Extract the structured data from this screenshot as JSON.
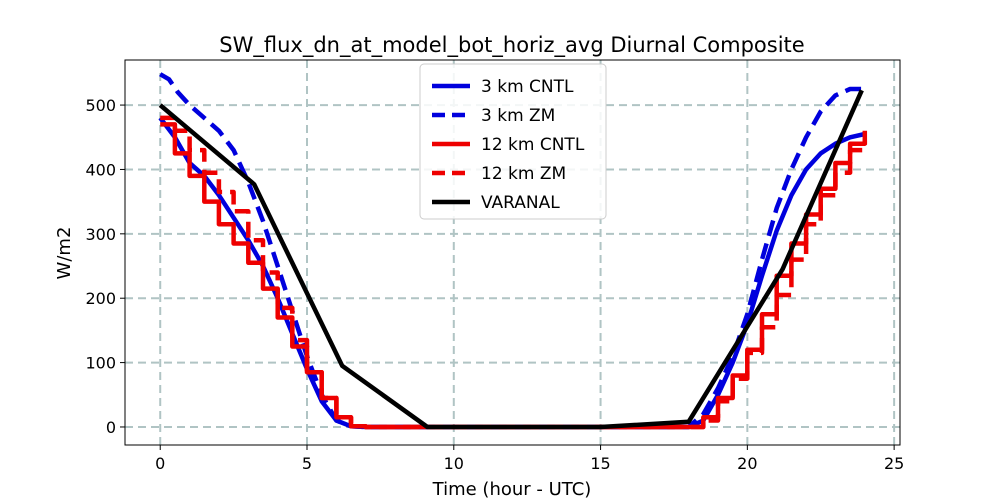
{
  "chart_data": {
    "type": "line",
    "title": "SW_flux_dn_at_model_bot_horiz_avg Diurnal Composite",
    "xlabel": "Time (hour - UTC)",
    "ylabel": "W/m2",
    "xlim": [
      -1.2,
      25.2
    ],
    "ylim": [
      -28,
      570
    ],
    "xticks": [
      0,
      5,
      10,
      15,
      20,
      25
    ],
    "yticks": [
      0,
      100,
      200,
      300,
      400,
      500
    ],
    "grid": true,
    "legend_position": "upper center",
    "colors": {
      "blue": "#0000dd",
      "red": "#ee0000",
      "black": "#000000",
      "grid": "#b0c4c4"
    },
    "series": [
      {
        "name": "3 km CNTL",
        "color": "#0000dd",
        "dash": "solid",
        "x": [
          0,
          0.5,
          1,
          1.5,
          2,
          2.5,
          3,
          3.5,
          4,
          4.5,
          5,
          5.5,
          6,
          6.5,
          7,
          8,
          9,
          10,
          12,
          14,
          16,
          17,
          18,
          18.5,
          19,
          19.5,
          20,
          20.5,
          21,
          21.5,
          22,
          22.5,
          23,
          23.5,
          24
        ],
        "y": [
          480,
          450,
          410,
          390,
          360,
          325,
          290,
          250,
          200,
          145,
          90,
          40,
          10,
          1,
          0,
          0,
          0,
          0,
          0,
          0,
          0,
          0,
          0,
          10,
          50,
          100,
          160,
          235,
          305,
          360,
          400,
          425,
          440,
          450,
          455
        ]
      },
      {
        "name": "3 km ZM",
        "color": "#0000dd",
        "dash": "dashed",
        "x": [
          0,
          0.3,
          0.6,
          1,
          1.5,
          2,
          2.5,
          3,
          3.5,
          4,
          4.5,
          5,
          5.5,
          6,
          6.5,
          7,
          8,
          9,
          10,
          12,
          14,
          16,
          17,
          18,
          18.5,
          19,
          19.5,
          20,
          20.5,
          21,
          21.5,
          22,
          22.5,
          23,
          23.5,
          24
        ],
        "y": [
          548,
          540,
          520,
          500,
          480,
          460,
          430,
          380,
          320,
          250,
          180,
          110,
          50,
          10,
          1,
          0,
          0,
          0,
          0,
          0,
          0,
          0,
          0,
          0,
          20,
          60,
          110,
          175,
          260,
          340,
          400,
          450,
          490,
          515,
          525,
          525
        ]
      },
      {
        "name": "12 km CNTL",
        "color": "#ee0000",
        "dash": "solid",
        "step": true,
        "x": [
          0,
          0.5,
          1,
          1.5,
          2,
          2.5,
          3,
          3.5,
          4,
          4.5,
          5,
          5.5,
          6,
          6.5,
          7,
          8,
          9,
          10,
          12,
          14,
          16,
          17,
          18,
          18.5,
          19,
          19.5,
          20,
          20.5,
          21,
          21.5,
          22,
          22.5,
          23,
          23.5,
          24
        ],
        "y": [
          470,
          425,
          390,
          350,
          315,
          285,
          255,
          215,
          170,
          125,
          85,
          45,
          15,
          1,
          0,
          0,
          0,
          0,
          0,
          0,
          0,
          0,
          0,
          15,
          45,
          80,
          120,
          175,
          235,
          285,
          330,
          370,
          410,
          440,
          460
        ]
      },
      {
        "name": "12 km ZM",
        "color": "#ee0000",
        "dash": "dashed",
        "step": true,
        "x": [
          0,
          0.5,
          1,
          1.5,
          2,
          2.5,
          3,
          3.5,
          4,
          4.5,
          5,
          5.5,
          6,
          6.5,
          7,
          8,
          9,
          10,
          12,
          14,
          16,
          17,
          18,
          18.5,
          19,
          19.5,
          20,
          20.5,
          21,
          21.5,
          22,
          22.5,
          23,
          23.5,
          24
        ],
        "y": [
          480,
          460,
          430,
          395,
          365,
          335,
          290,
          240,
          185,
          135,
          85,
          45,
          15,
          1,
          0,
          0,
          0,
          0,
          0,
          0,
          0,
          0,
          0,
          10,
          40,
          75,
          115,
          155,
          205,
          260,
          315,
          360,
          395,
          430,
          445
        ]
      },
      {
        "name": "VARANAL",
        "color": "#000000",
        "dash": "solid",
        "x": [
          0,
          3.2,
          6.2,
          9.1,
          15,
          18,
          21.2,
          23.9
        ],
        "y": [
          500,
          377,
          95,
          0,
          0,
          8,
          245,
          523
        ]
      }
    ]
  }
}
